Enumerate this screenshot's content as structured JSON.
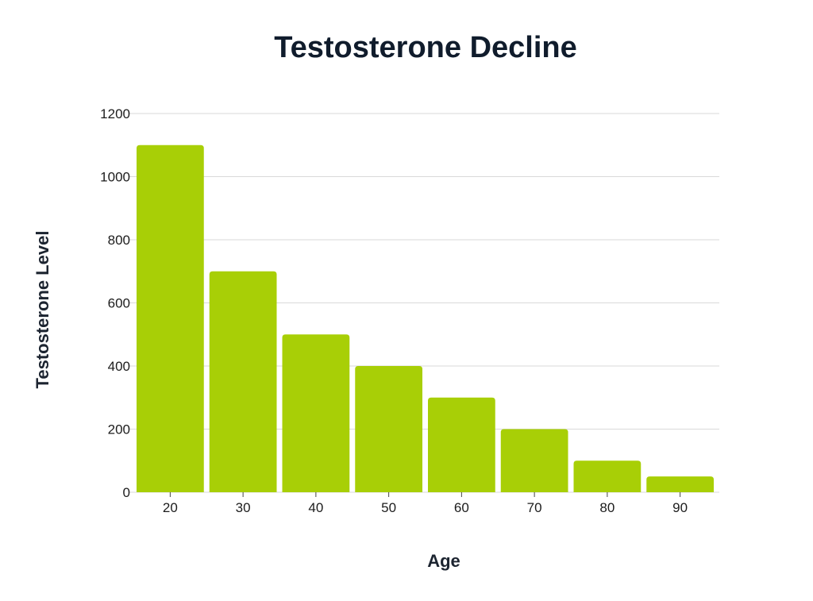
{
  "colors": {
    "bar": "#a8cf06",
    "title": "#101c2c",
    "grid": "#d9d9d9",
    "background": "#ffffff"
  },
  "chart_data": {
    "type": "bar",
    "title": "Testosterone Decline",
    "xlabel": "Age",
    "ylabel": "Testosterone Level",
    "categories": [
      "20",
      "30",
      "40",
      "50",
      "60",
      "70",
      "80",
      "90"
    ],
    "values": [
      1100,
      700,
      500,
      400,
      300,
      200,
      100,
      50
    ],
    "ylim": [
      0,
      1200
    ],
    "yticks": [
      0,
      200,
      400,
      600,
      800,
      1000,
      1200
    ],
    "grid": true,
    "legend": "none"
  }
}
